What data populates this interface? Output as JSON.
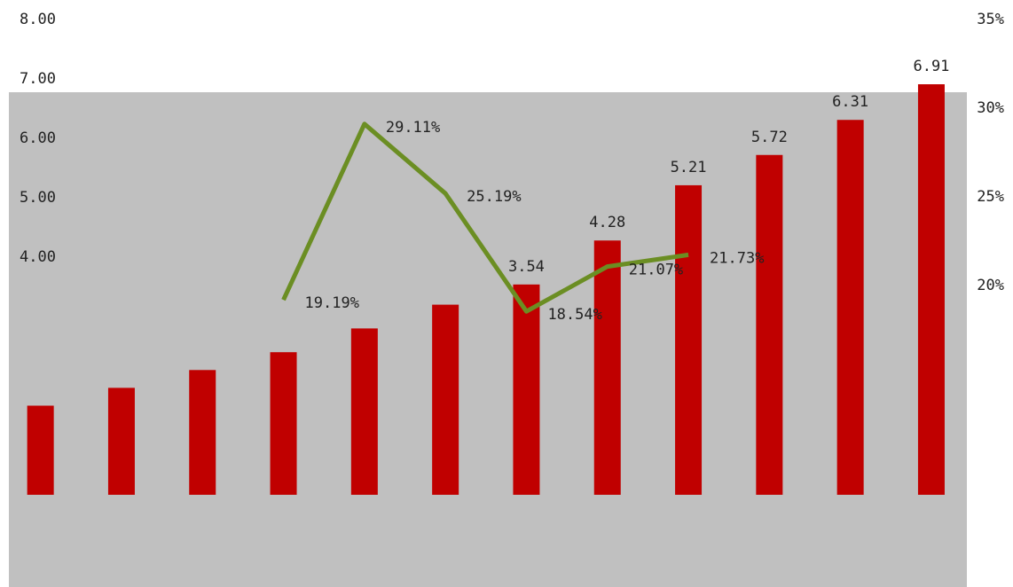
{
  "chart_data": {
    "type": "bar-line",
    "categories": [
      null,
      null,
      null,
      null,
      null,
      null,
      null,
      null,
      null,
      null,
      null,
      null
    ],
    "series": [
      {
        "type": "bar",
        "color": "#c00000",
        "values": [
          1.5,
          1.8,
          2.1,
          2.4,
          2.8,
          3.2,
          3.54,
          4.28,
          5.21,
          5.72,
          6.31,
          6.91
        ],
        "value_labels": [
          null,
          null,
          null,
          null,
          null,
          null,
          "3.54",
          "4.28",
          "5.21",
          "5.72",
          "6.31",
          "6.91"
        ]
      },
      {
        "type": "line",
        "axis": "y2",
        "color": "#6b8e23",
        "values": [
          null,
          null,
          null,
          19.19,
          29.11,
          25.19,
          18.54,
          21.07,
          21.73,
          null,
          null,
          null
        ],
        "value_labels": [
          null,
          null,
          null,
          "19.19%",
          "29.11%",
          "25.19%",
          "18.54%",
          "21.07%",
          "21.73%",
          null,
          null,
          null
        ]
      }
    ],
    "ylim": [
      0,
      8
    ],
    "yticks": [
      {
        "value": 4,
        "label": "4.00"
      },
      {
        "value": 5,
        "label": "5.00"
      },
      {
        "value": 6,
        "label": "6.00"
      },
      {
        "value": 7,
        "label": "7.00"
      },
      {
        "value": 8,
        "label": "8.00"
      }
    ],
    "y2lim": [
      0,
      35
    ],
    "y2ticks": [
      {
        "value": 20,
        "label": "20%"
      },
      {
        "value": 25,
        "label": "25%"
      },
      {
        "value": 30,
        "label": "30%"
      },
      {
        "value": 35,
        "label": "35%"
      }
    ]
  }
}
